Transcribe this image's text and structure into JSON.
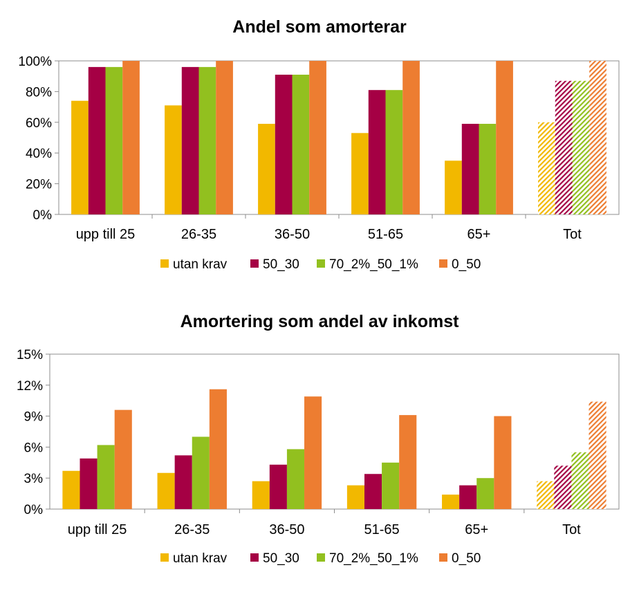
{
  "colors": {
    "utan_krav": "#F2B800",
    "50_30": "#A50044",
    "70_2%_50_1%": "#92C01F",
    "0_50": "#ED7D31"
  },
  "chart_data": [
    {
      "type": "bar",
      "title": "Andel som amorterar",
      "categories": [
        "upp till 25",
        "26-35",
        "36-50",
        "51-65",
        "65+",
        "Tot"
      ],
      "ylim": [
        0,
        1
      ],
      "yticks": [
        "0%",
        "20%",
        "40%",
        "60%",
        "80%",
        "100%"
      ],
      "grid": false,
      "legend_position": "bottom",
      "hatched_category": "Tot",
      "series": [
        {
          "name": "utan krav",
          "values": [
            0.74,
            0.71,
            0.59,
            0.53,
            0.35,
            0.6
          ]
        },
        {
          "name": "50_30",
          "values": [
            0.96,
            0.96,
            0.91,
            0.81,
            0.59,
            0.87
          ]
        },
        {
          "name": "70_2%_50_1%",
          "values": [
            0.96,
            0.96,
            0.91,
            0.81,
            0.59,
            0.87
          ]
        },
        {
          "name": "0_50",
          "values": [
            1.0,
            1.0,
            1.0,
            1.0,
            1.0,
            1.0
          ]
        }
      ]
    },
    {
      "type": "bar",
      "title": "Amortering som andel av inkomst",
      "categories": [
        "upp till 25",
        "26-35",
        "36-50",
        "51-65",
        "65+",
        "Tot"
      ],
      "ylim": [
        0,
        0.15
      ],
      "yticks": [
        "0%",
        "3%",
        "6%",
        "9%",
        "12%",
        "15%"
      ],
      "grid": false,
      "legend_position": "bottom",
      "hatched_category": "Tot",
      "series": [
        {
          "name": "utan krav",
          "values": [
            0.037,
            0.035,
            0.027,
            0.023,
            0.014,
            0.027
          ]
        },
        {
          "name": "50_30",
          "values": [
            0.049,
            0.052,
            0.043,
            0.034,
            0.023,
            0.042
          ]
        },
        {
          "name": "70_2%_50_1%",
          "values": [
            0.062,
            0.07,
            0.058,
            0.045,
            0.03,
            0.055
          ]
        },
        {
          "name": "0_50",
          "values": [
            0.096,
            0.116,
            0.109,
            0.091,
            0.09,
            0.104
          ]
        }
      ]
    }
  ]
}
